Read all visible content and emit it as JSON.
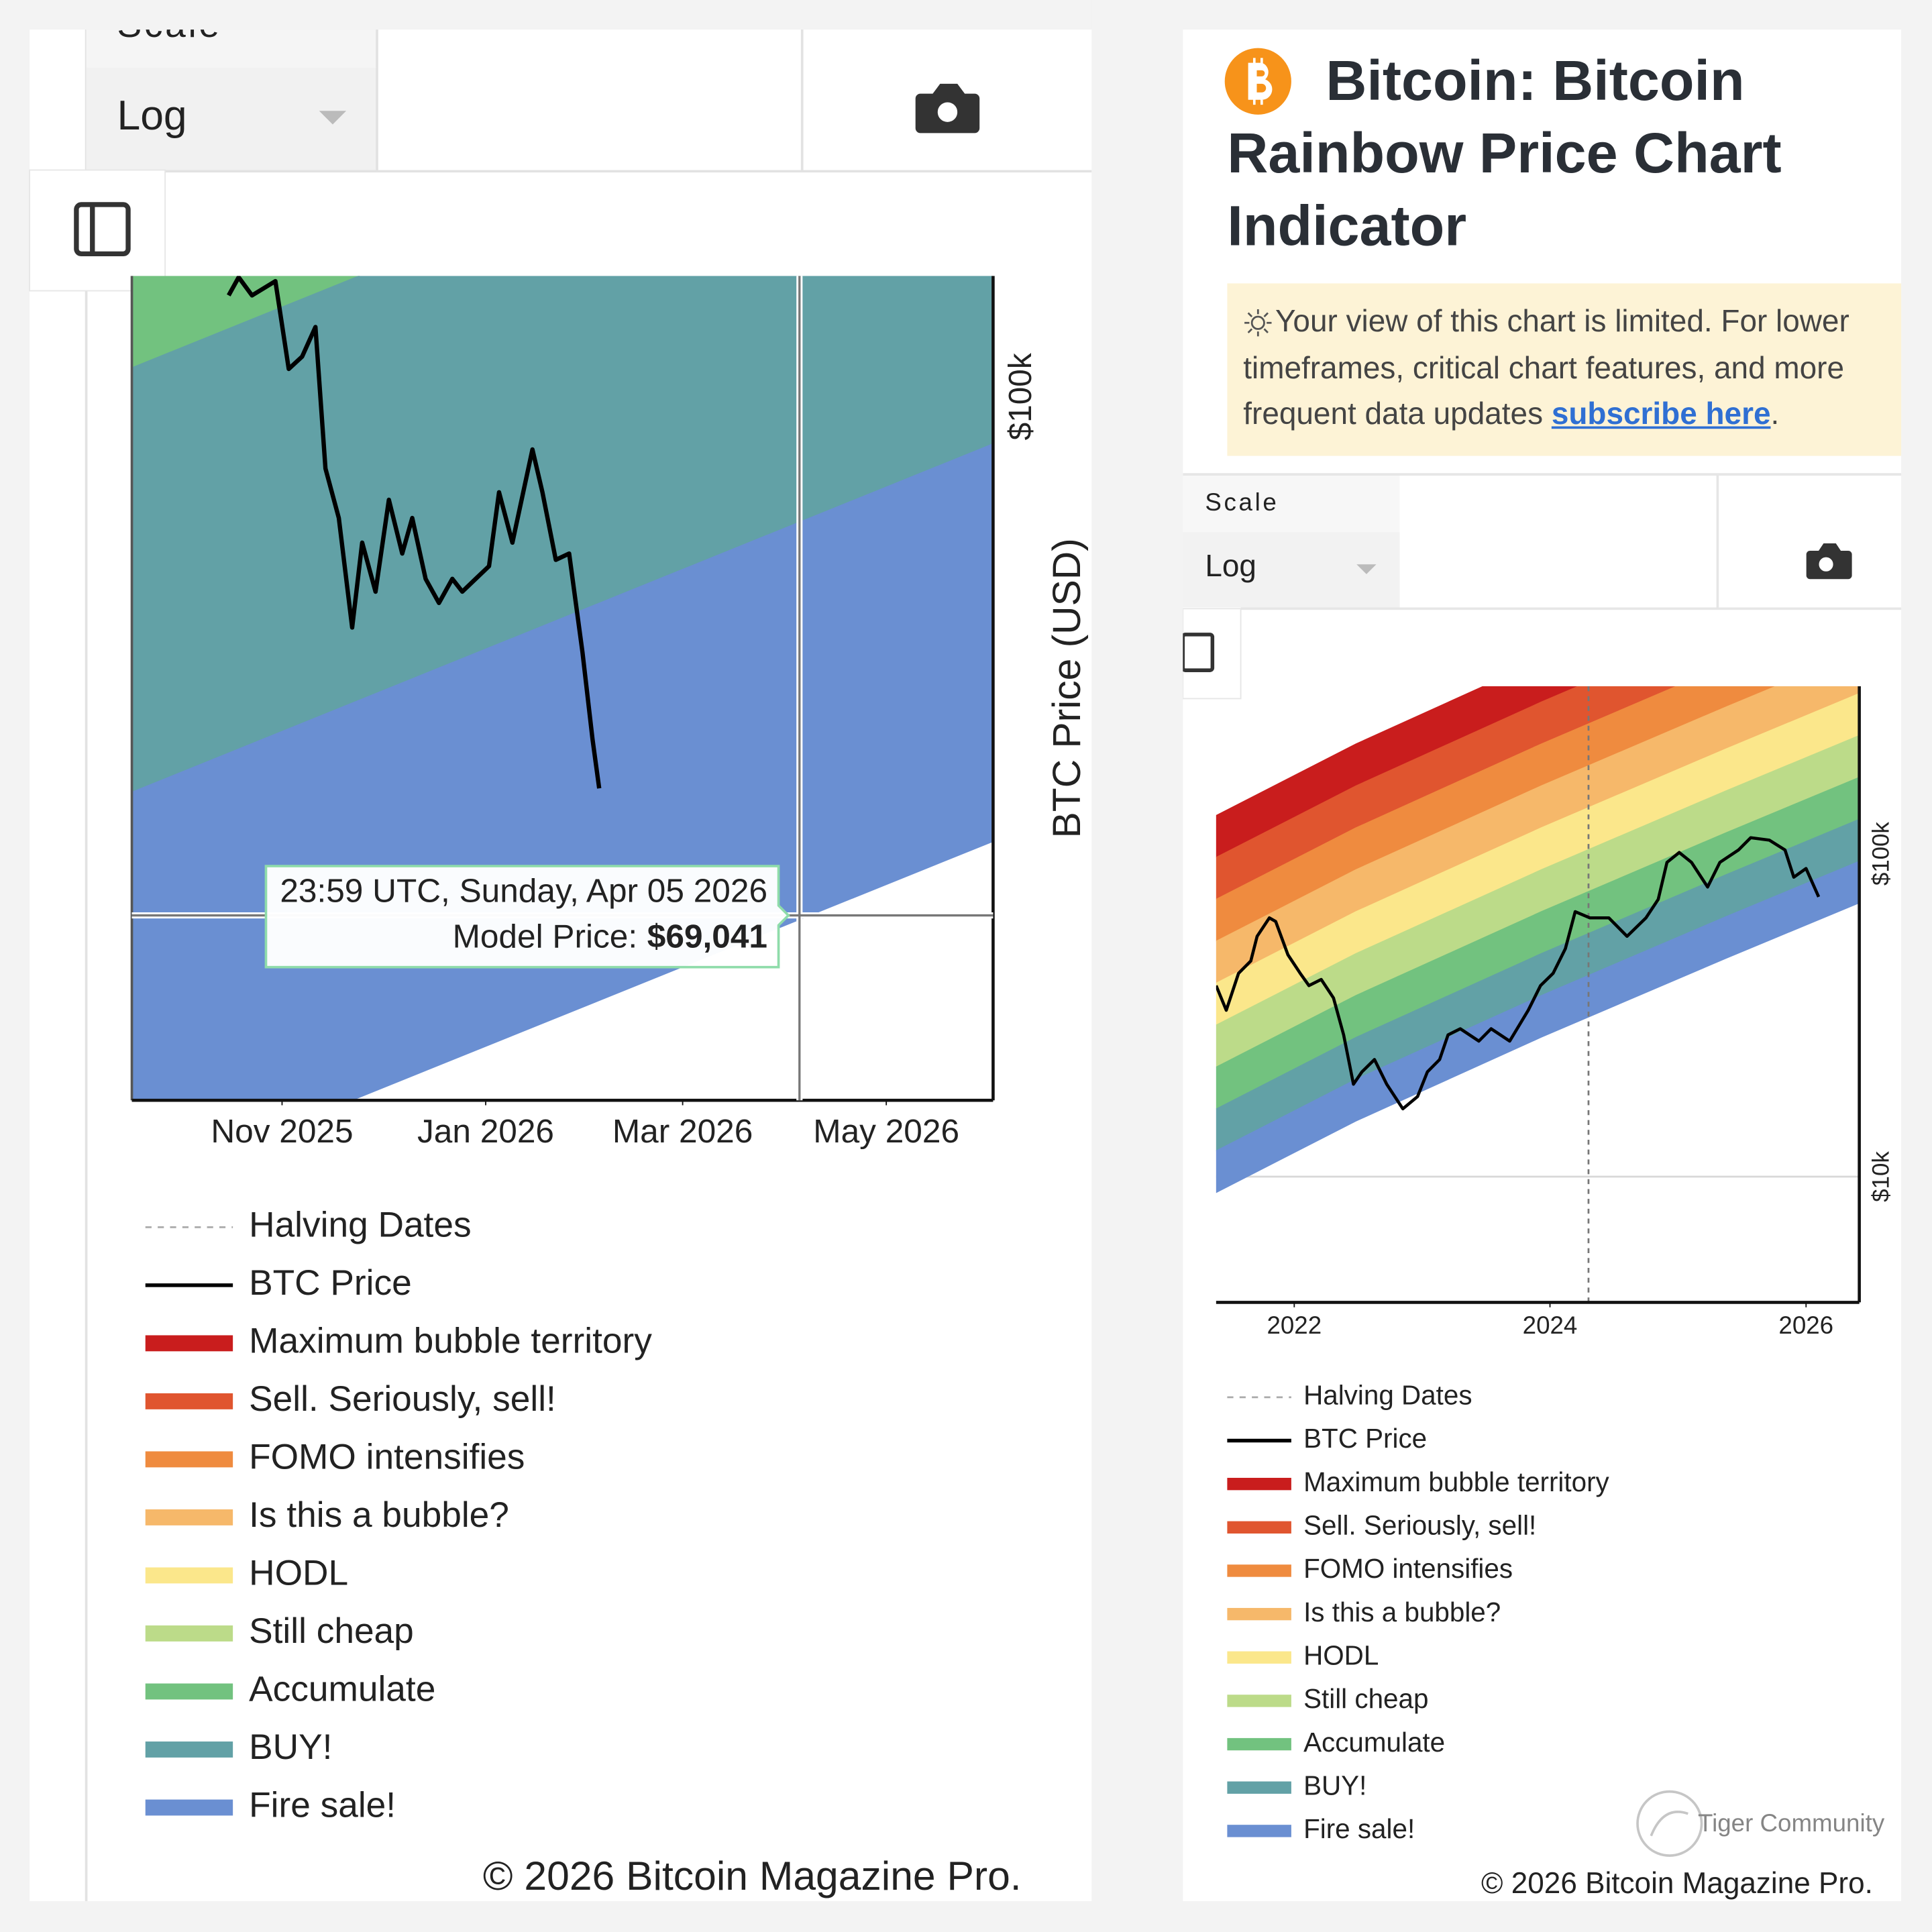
{
  "left_panel": {
    "scale_label": "Scale",
    "scale_value": "Log",
    "copyright": "© 2026 Bitcoin Magazine Pro."
  },
  "right_panel": {
    "title": "Bitcoin: Bitcoin Rainbow Price Chart Indicator",
    "notice": "Your view of this chart is limited. For lower timeframes, critical chart features, and more frequent data updates ",
    "notice_link": "subscribe here",
    "notice_end": ".",
    "scale_label": "Scale",
    "scale_value": "Log",
    "copyright": "© 2026 Bitcoin Magazine Pro."
  },
  "watermark": "Tiger Community",
  "chart_data": [
    {
      "type": "line",
      "log_y": true,
      "y_label": "BTC Price (USD)",
      "legend": "bottom",
      "grid": true,
      "xlim": [
        "2025-09-17",
        "2026-06-02"
      ],
      "xticks": [
        {
          "value": "2025-11-01",
          "label": "Nov 2025"
        },
        {
          "value": "2026-01-01",
          "label": "Jan 2026"
        },
        {
          "value": "2026-03-01",
          "label": "Mar 2026"
        },
        {
          "value": "2026-05-01",
          "label": "May 2026"
        }
      ],
      "ylim": [
        60500,
        109000
      ],
      "yticks": [
        {
          "value": 100000,
          "label": "$100k"
        }
      ],
      "band_x": [
        "2025-09-17",
        "2026-06-02"
      ],
      "tooltip": {
        "x": "2026-04-05",
        "time": "23:59 UTC, Sunday, Apr 05 2026",
        "label": "Model Price:",
        "value": 69041,
        "value_label": "$69,041"
      },
      "series": [
        {
          "name": "Halving Dates",
          "color": "#a0a0a0",
          "style": "dashed"
        },
        {
          "name": "BTC Price",
          "color": "#000000",
          "style": "line",
          "x": [
            "2025-10-16",
            "2025-10-19",
            "2025-10-23",
            "2025-10-30",
            "2025-11-03",
            "2025-11-07",
            "2025-11-11",
            "2025-11-14",
            "2025-11-18",
            "2025-11-22",
            "2025-11-25",
            "2025-11-29",
            "2025-12-03",
            "2025-12-07",
            "2025-12-10",
            "2025-12-14",
            "2025-12-18",
            "2025-12-22",
            "2025-12-25",
            "2025-12-29",
            "2026-01-02",
            "2026-01-05",
            "2026-01-09",
            "2026-01-15",
            "2026-01-18",
            "2026-01-22",
            "2026-01-26",
            "2026-01-30",
            "2026-02-02",
            "2026-02-04"
          ],
          "values": [
            107500,
            108900,
            107500,
            108600,
            102000,
            102900,
            105100,
            95000,
            91700,
            84800,
            90100,
            87000,
            92900,
            89400,
            91700,
            87800,
            86300,
            87800,
            87000,
            87800,
            88600,
            93400,
            90100,
            96300,
            93400,
            89000,
            89400,
            83300,
            78300,
            75600
          ]
        },
        {
          "name": "Maximum bubble territory",
          "color": "#c91d1d",
          "style": "band"
        },
        {
          "name": "Sell. Seriously, sell!",
          "color": "#e0552f",
          "style": "band"
        },
        {
          "name": "FOMO intensifies",
          "color": "#ef8b3f",
          "style": "band"
        },
        {
          "name": "Is this a bubble?",
          "color": "#f6b86a",
          "style": "band"
        },
        {
          "name": "HODL",
          "color": "#fbe78b",
          "style": "band"
        },
        {
          "name": "Still cheap",
          "color": "#bcdb89",
          "style": "band"
        },
        {
          "name": "Accumulate",
          "color": "#72c27f",
          "style": "band",
          "lower": [
            102100,
            130900
          ],
          "upper": [
            138000,
            185000
          ]
        },
        {
          "name": "BUY!",
          "color": "#62a1a6",
          "style": "band",
          "lower": [
            75400,
            96700
          ],
          "upper": [
            102100,
            130900
          ]
        },
        {
          "name": "Fire sale!",
          "color": "#6a8fd2",
          "style": "band",
          "lower": [
            56770,
            72780
          ],
          "upper": [
            75400,
            96700
          ]
        }
      ]
    },
    {
      "type": "line",
      "log_y": true,
      "legend": "bottom",
      "grid": true,
      "xlim": [
        "2021-05-23",
        "2026-06-02"
      ],
      "xticks": [
        {
          "value": "2022-01-01",
          "label": "2022"
        },
        {
          "value": "2024-01-01",
          "label": "2024"
        },
        {
          "value": "2026-01-01",
          "label": "2026"
        }
      ],
      "ylim": [
        4080,
        330000
      ],
      "yticks": [
        {
          "value": 10000,
          "label": "$10k"
        },
        {
          "value": 100000,
          "label": "$100k"
        }
      ],
      "band_x": [
        "2021-05-23",
        "2022-06-26",
        "2023-12-07",
        "2025-05-17",
        "2026-06-02"
      ],
      "series": [
        {
          "name": "Halving Dates",
          "color": "#a0a0a0",
          "style": "dashed",
          "x": [
            "2024-04-20"
          ]
        },
        {
          "name": "BTC Price",
          "color": "#000000",
          "style": "line",
          "x": [
            "2021-05-23",
            "2021-06-21",
            "2021-07-26",
            "2021-08-30",
            "2021-09-17",
            "2021-10-22",
            "2021-11-09",
            "2021-12-14",
            "2022-01-18",
            "2022-02-12",
            "2022-03-19",
            "2022-04-23",
            "2022-05-22",
            "2022-06-19",
            "2022-07-13",
            "2022-08-18",
            "2022-09-22",
            "2022-11-07",
            "2022-12-19",
            "2023-01-16",
            "2023-02-20",
            "2023-03-16",
            "2023-04-20",
            "2023-06-12",
            "2023-07-17",
            "2023-09-08",
            "2023-10-31",
            "2023-12-05",
            "2024-01-10",
            "2024-02-14",
            "2024-03-13",
            "2024-04-24",
            "2024-06-17",
            "2024-08-08",
            "2024-10-01",
            "2024-11-05",
            "2024-11-30",
            "2025-01-04",
            "2025-02-08",
            "2025-03-26",
            "2025-04-30",
            "2025-06-22",
            "2025-07-27",
            "2025-09-18",
            "2025-11-02",
            "2025-11-27",
            "2026-01-01",
            "2026-02-06"
          ],
          "values": [
            39050,
            32760,
            42630,
            46550,
            55500,
            63300,
            61700,
            48640,
            42630,
            39050,
            40800,
            35760,
            27480,
            19330,
            21100,
            23050,
            19330,
            16220,
            17700,
            21100,
            23050,
            27480,
            28710,
            26290,
            28710,
            26290,
            32760,
            39050,
            42630,
            50830,
            66160,
            63300,
            63300,
            55500,
            63300,
            72250,
            94030,
            100900,
            94030,
            78870,
            94030,
            102700,
            112100,
            110200,
            102700,
            84600,
            90000,
            73530
          ]
        },
        {
          "name": "Maximum bubble territory",
          "color": "#c91d1d",
          "style": "band",
          "lower": [
            97540,
            162400,
            295200,
            518100,
            769500
          ],
          "upper": [
            131500,
            219000,
            398200,
            698700,
            1037700
          ]
        },
        {
          "name": "Sell. Seriously, sell!",
          "color": "#e0552f",
          "style": "band",
          "lower": [
            72330,
            120400,
            218900,
            384200,
            570600
          ],
          "upper": [
            97540,
            162400,
            295200,
            518100,
            769500
          ]
        },
        {
          "name": "FOMO intensifies",
          "color": "#ef8b3f",
          "style": "band",
          "lower": [
            53640,
            89300,
            162400,
            284900,
            423200
          ],
          "upper": [
            72330,
            120400,
            218900,
            384200,
            570600
          ]
        },
        {
          "name": "Is this a bubble?",
          "color": "#f6b86a",
          "style": "band",
          "lower": [
            39780,
            66220,
            120400,
            211300,
            313800
          ],
          "upper": [
            53640,
            89300,
            162400,
            284900,
            423200
          ]
        },
        {
          "name": "HODL",
          "color": "#fbe78b",
          "style": "band",
          "lower": [
            29500,
            49110,
            89280,
            156700,
            232700
          ],
          "upper": [
            39780,
            66220,
            120400,
            211300,
            313800
          ]
        },
        {
          "name": "Still cheap",
          "color": "#bcdb89",
          "style": "band",
          "lower": [
            21870,
            36420,
            66210,
            116200,
            172600
          ],
          "upper": [
            29500,
            49110,
            89280,
            156700,
            232700
          ]
        },
        {
          "name": "Accumulate",
          "color": "#72c27f",
          "style": "band",
          "lower": [
            16220,
            27010,
            49100,
            86160,
            128000
          ],
          "upper": [
            21870,
            36420,
            66210,
            116200,
            172600
          ]
        },
        {
          "name": "BUY!",
          "color": "#62a1a6",
          "style": "band",
          "lower": [
            12030,
            20030,
            36410,
            63890,
            94890
          ],
          "upper": [
            16220,
            27010,
            49100,
            86160,
            128000
          ]
        },
        {
          "name": "Fire sale!",
          "color": "#6a8fd2",
          "style": "band",
          "lower": [
            8920,
            14850,
            27000,
            47380,
            70370
          ],
          "upper": [
            12030,
            20030,
            36410,
            63890,
            94890
          ]
        }
      ]
    }
  ]
}
